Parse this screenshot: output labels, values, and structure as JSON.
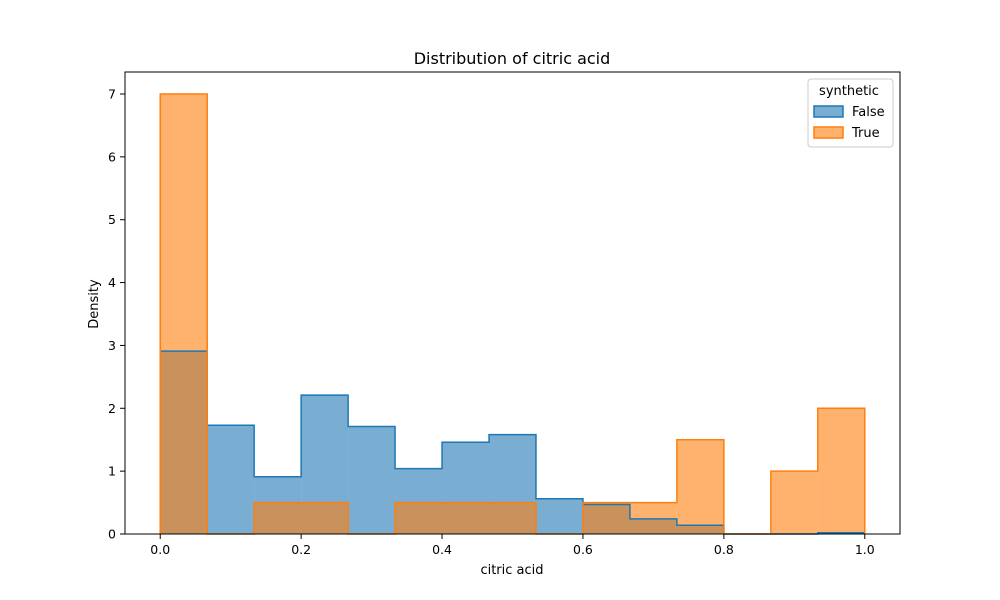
{
  "chart_data": {
    "type": "histogram",
    "title": "Distribution of citric acid",
    "xlabel": "citric acid",
    "ylabel": "Density",
    "xlim": [
      -0.05,
      1.05
    ],
    "ylim": [
      0,
      7.35
    ],
    "xticks": [
      0.0,
      0.2,
      0.4,
      0.6,
      0.8,
      1.0
    ],
    "xtick_labels": [
      "0.0",
      "0.2",
      "0.4",
      "0.6",
      "0.8",
      "1.0"
    ],
    "yticks": [
      0,
      1,
      2,
      3,
      4,
      5,
      6,
      7
    ],
    "ytick_labels": [
      "0",
      "1",
      "2",
      "3",
      "4",
      "5",
      "6",
      "7"
    ],
    "bin_edges": [
      0.0,
      0.0667,
      0.1333,
      0.2,
      0.2667,
      0.3333,
      0.4,
      0.4667,
      0.5333,
      0.6,
      0.6667,
      0.7333,
      0.8,
      0.8667,
      0.9333,
      1.0
    ],
    "grid": false,
    "legend": {
      "title": "synthetic",
      "position": "top-right"
    },
    "series": [
      {
        "name": "False",
        "color": "#1f77b4",
        "values": [
          2.91,
          1.73,
          0.91,
          2.21,
          1.71,
          1.04,
          1.46,
          1.58,
          0.56,
          0.47,
          0.24,
          0.14,
          0.0,
          0.0,
          0.02
        ]
      },
      {
        "name": "True",
        "color": "#ff7f0e",
        "values": [
          7.0,
          0.0,
          0.5,
          0.5,
          0.0,
          0.5,
          0.5,
          0.5,
          0.0,
          0.5,
          0.5,
          1.5,
          0.0,
          1.0,
          2.0
        ]
      }
    ]
  }
}
